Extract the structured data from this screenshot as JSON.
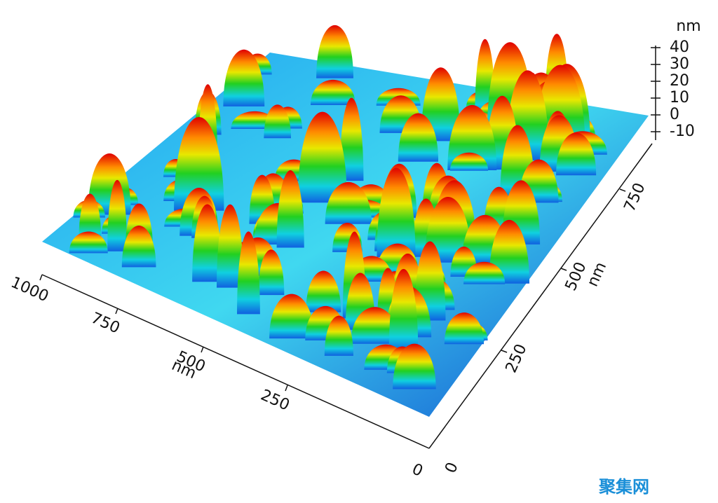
{
  "z_axis": {
    "unit": "nm",
    "ticks": [
      "40",
      "30",
      "20",
      "10",
      "0",
      "-10"
    ]
  },
  "x_axis": {
    "ticks": [
      "1000",
      "750",
      "500",
      "250",
      "0"
    ],
    "unit": "nm"
  },
  "y_axis": {
    "ticks": [
      "0",
      "250",
      "500",
      "750"
    ],
    "unit": "nm"
  },
  "watermark": "聚集网"
}
